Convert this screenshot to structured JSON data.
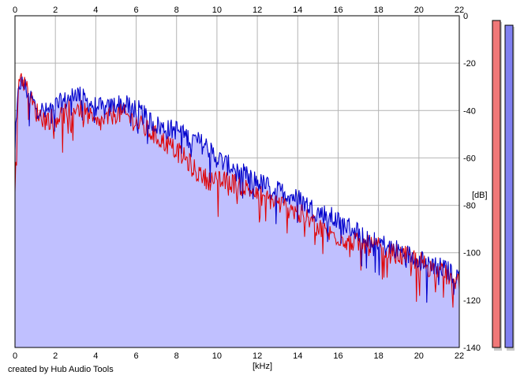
{
  "credit": "created by Hub Audio Tools",
  "colors": {
    "background": "#ffffff",
    "grid": "#b4b4b4",
    "axis": "#000000",
    "area_fill": "#c0c0ff",
    "left_channel": "#e00000",
    "right_channel": "#0000cc",
    "left_meter": "#f07878",
    "right_meter": "#8080f0"
  },
  "chart_data": {
    "type": "area",
    "xlabel": "[kHz]",
    "ylabel": "[dB]",
    "xlim": [
      0,
      22
    ],
    "ylim": [
      -140,
      0
    ],
    "x_ticks": [
      "0",
      "2",
      "4",
      "6",
      "8",
      "10",
      "12",
      "14",
      "16",
      "18",
      "20",
      "22"
    ],
    "y_ticks": [
      "0",
      "-20",
      "-40",
      "-60",
      "-80",
      "-100",
      "-120",
      "-140"
    ],
    "grid": true,
    "series": [
      {
        "color": "#0000cc",
        "x": [
          0,
          0.2,
          0.5,
          1,
          1.5,
          2,
          2.5,
          3,
          3.5,
          4,
          4.5,
          5,
          5.5,
          6,
          6.5,
          7,
          7.5,
          8,
          8.5,
          9,
          9.5,
          10,
          10.5,
          11,
          11.5,
          12,
          12.5,
          13,
          13.5,
          14,
          14.5,
          15,
          15.5,
          16,
          16.5,
          17,
          17.5,
          18,
          18.5,
          19,
          19.5,
          20,
          20.5,
          21,
          21.5,
          22
        ],
        "values": [
          -55,
          -28,
          -30,
          -38,
          -41,
          -38,
          -36,
          -32,
          -36,
          -38,
          -40,
          -37,
          -38,
          -39,
          -43,
          -46,
          -48,
          -48,
          -51,
          -53,
          -55,
          -60,
          -63,
          -64,
          -68,
          -70,
          -72,
          -74,
          -75,
          -77,
          -80,
          -83,
          -84,
          -87,
          -89,
          -91,
          -93,
          -95,
          -98,
          -99,
          -101,
          -102,
          -104,
          -106,
          -108,
          -110
        ]
      },
      {
        "color": "#e00000",
        "x": [
          0,
          0.2,
          0.5,
          1,
          1.5,
          2,
          2.5,
          3,
          3.5,
          4,
          4.5,
          5,
          5.5,
          6,
          6.5,
          7,
          7.5,
          8,
          8.5,
          9,
          9.5,
          10,
          10.5,
          11,
          11.5,
          12,
          12.5,
          13,
          13.5,
          14,
          14.5,
          15,
          15.5,
          16,
          16.5,
          17,
          17.5,
          18,
          18.5,
          19,
          19.5,
          20,
          20.5,
          21,
          21.5,
          22
        ],
        "values": [
          -70,
          -24,
          -29,
          -40,
          -44,
          -43,
          -41,
          -38,
          -41,
          -46,
          -44,
          -41,
          -42,
          -45,
          -48,
          -51,
          -54,
          -57,
          -61,
          -66,
          -69,
          -70,
          -70,
          -71,
          -73,
          -75,
          -77,
          -79,
          -81,
          -83,
          -86,
          -89,
          -92,
          -93,
          -95,
          -96,
          -97,
          -98,
          -100,
          -101,
          -102,
          -103,
          -106,
          -108,
          -110,
          -112
        ]
      }
    ],
    "meters": {
      "left": {
        "level": -2
      },
      "right": {
        "level": -4
      }
    }
  }
}
